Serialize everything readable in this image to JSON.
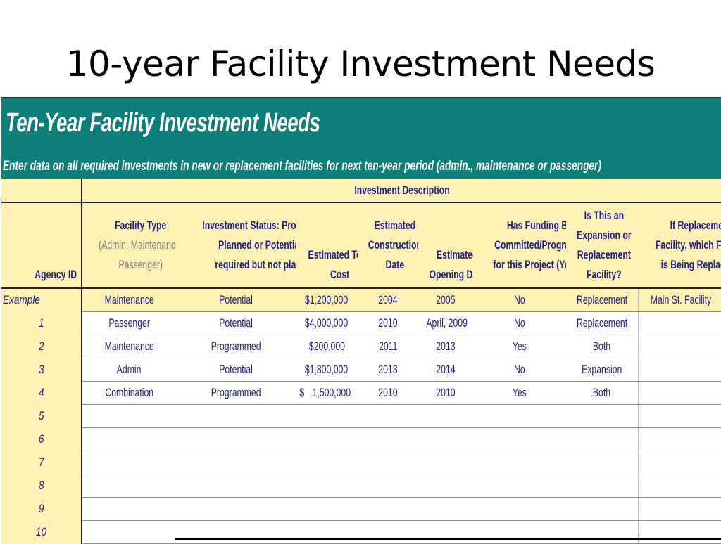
{
  "slide": {
    "title": "10-year Facility Investment Needs"
  },
  "banner": {
    "title": "Ten-Year Facility Investment Needs",
    "subtitle": "Enter data on all required investments in new or replacement facilities for next ten-year period (admin., maintenance or passenger)"
  },
  "table": {
    "group_header": "Investment Description",
    "headers": {
      "agency_id": "Agency ID",
      "facility_type": [
        "Facility Type",
        "(Admin, Maintenance,",
        "Passenger)"
      ],
      "investment_status": [
        "Investment Status: Programmed,",
        "Planned or Potential (i.e.,",
        "required but not planned)?"
      ],
      "total_cost": [
        "Estimated Total",
        "Cost"
      ],
      "construction_date": [
        "Estimated",
        "Construction",
        "Date"
      ],
      "opening_date": [
        "Estimated",
        "Opening Date"
      ],
      "funding": [
        "Has Funding Been",
        "Committed/Programmed",
        "for this Project (Yes/No)?"
      ],
      "expansion": [
        "Is This an",
        "Expansion or",
        "Replacement",
        "Facility?"
      ],
      "replaced": [
        "If Replacement",
        "Facility, which Facility",
        "is Being Replaced?"
      ]
    },
    "example": {
      "id": "Example",
      "facility_type": "Maintenance",
      "status": "Potential",
      "cost": "$1,200,000",
      "construction": "2004",
      "opening": "2005",
      "funding": "No",
      "expansion": "Replacement",
      "replaced": "Main St. Facility"
    },
    "rows": [
      {
        "id": "1",
        "facility_type": "Passenger",
        "status": "Potential",
        "cost": "$4,000,000",
        "construction": "2010",
        "opening": "April, 2009",
        "funding": "No",
        "expansion": "Replacement",
        "replaced": ""
      },
      {
        "id": "2",
        "facility_type": "Maintenance",
        "status": "Programmed",
        "cost": "$200,000",
        "construction": "2011",
        "opening": "2013",
        "funding": "Yes",
        "expansion": "Both",
        "replaced": ""
      },
      {
        "id": "3",
        "facility_type": "Admin",
        "status": "Potential",
        "cost": "$1,800,000",
        "construction": "2013",
        "opening": "2014",
        "funding": "No",
        "expansion": "Expansion",
        "replaced": ""
      },
      {
        "id": "4",
        "facility_type": "Combination",
        "status": "Programmed",
        "cost_symbol": "$",
        "cost": "1,500,000",
        "construction": "2010",
        "opening": "2010",
        "funding": "Yes",
        "expansion": "Both",
        "replaced": ""
      },
      {
        "id": "5"
      },
      {
        "id": "6"
      },
      {
        "id": "7"
      },
      {
        "id": "8"
      },
      {
        "id": "9"
      },
      {
        "id": "10"
      }
    ]
  },
  "colors": {
    "banner": "#0d7f7a",
    "header_fill": "#fdf1b6",
    "text": "#1e1e8a",
    "muted": "#7d7d7d"
  }
}
